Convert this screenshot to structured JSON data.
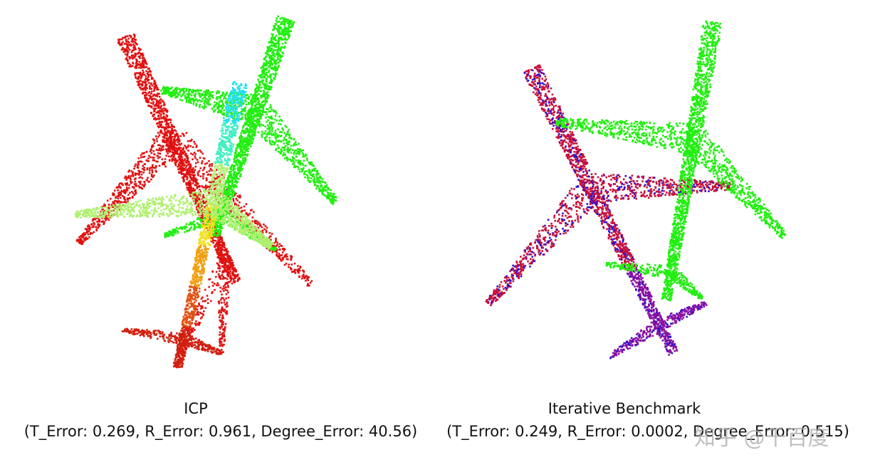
{
  "panels": [
    {
      "title": "ICP",
      "metrics": "(T_Error: 0.269, R_Error: 0.961, Degree_Error: 40.56)"
    },
    {
      "title": "Iterative Benchmark",
      "metrics": "(T_Error: 0.249, R_Error: 0.0002, Degree_Error: 0.515)"
    }
  ],
  "watermark": "知乎 @千百度"
}
